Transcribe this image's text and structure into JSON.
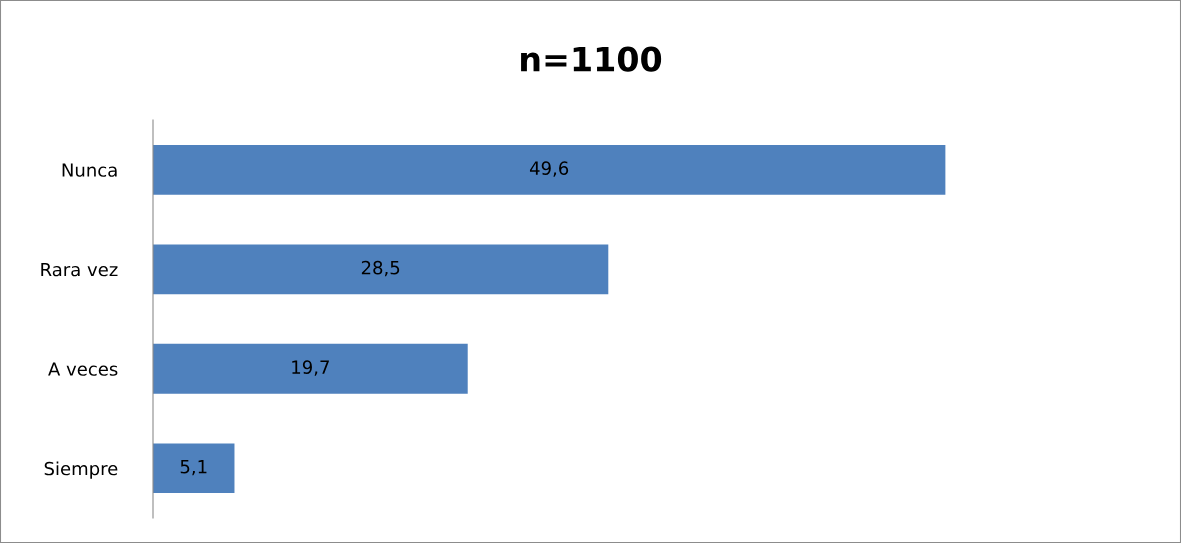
{
  "chart_data": {
    "type": "bar",
    "orientation": "horizontal",
    "title": "n=1100",
    "categories": [
      "Nunca",
      "Rara vez",
      "A veces",
      "Siempre"
    ],
    "values": [
      49.6,
      28.5,
      19.7,
      5.1
    ],
    "color": "#4f81bd",
    "data_labels": true,
    "value_labels": [
      "49,6",
      "28,5",
      "19,7",
      "5,1"
    ],
    "grid": false,
    "legend": false,
    "tick_labels": "y"
  }
}
